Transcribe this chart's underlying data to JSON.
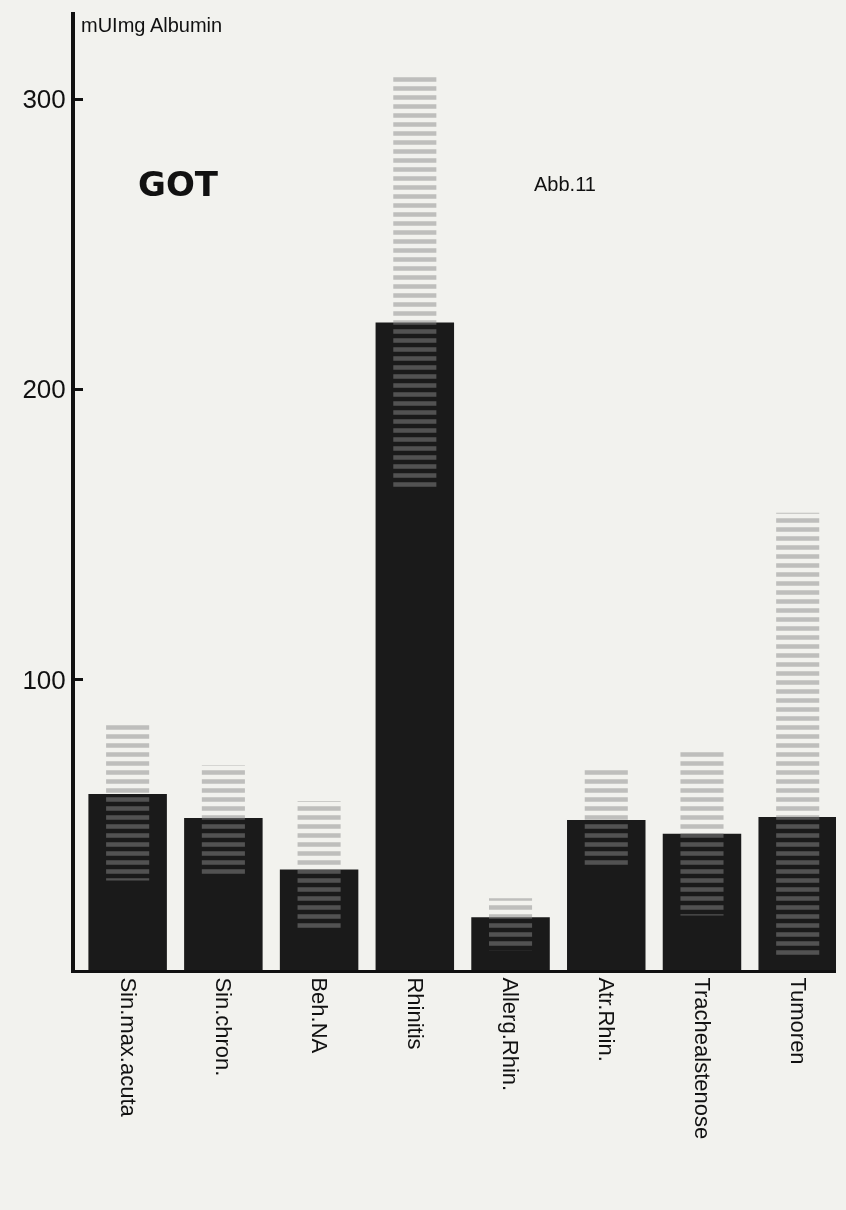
{
  "chart_data": {
    "type": "bar",
    "title": "GOT",
    "ylabel": "mUImg Albumin",
    "annotations": [
      "Abb.11"
    ],
    "categories": [
      "Sin.max.acuta",
      "Sin.chron.",
      "Beh.NA",
      "Rhinitis",
      "Allerg.Rhin.",
      "Atr.Rhin.",
      "Trachealstenose",
      "Tumoren"
    ],
    "series": [
      {
        "color": "#1a1a1a",
        "values": [
          60.6,
          52.4,
          34.6,
          223,
          18.2,
          51.7,
          46.9,
          52.7
        ]
      },
      {
        "color": "#8a8a8a",
        "base": [
          30.8,
          32.9,
          13.7,
          165,
          6.8,
          35.3,
          18.8,
          4.5
        ],
        "values": [
          53.8,
          37.6,
          44.5,
          144,
          17.9,
          34.2,
          56.9,
          153
        ]
      }
    ],
    "ylim": [
      0,
      330
    ],
    "yticks": [
      100,
      200,
      300
    ],
    "grid": false
  }
}
